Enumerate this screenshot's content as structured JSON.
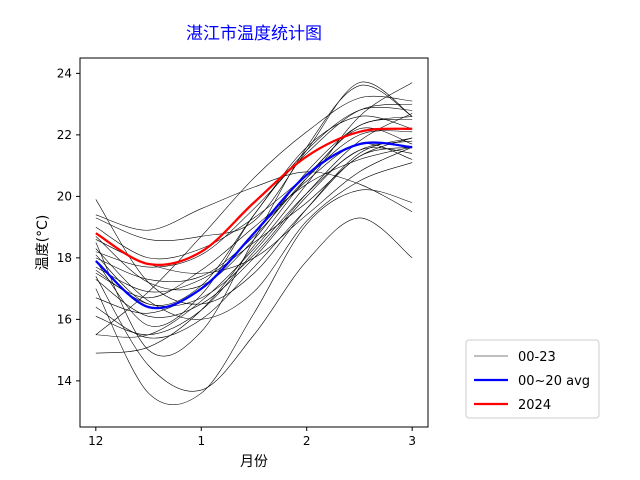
{
  "chart_data": {
    "type": "line",
    "title": "湛江市温度统计图",
    "title_color": "#0000ff",
    "xlabel": "月份",
    "ylabel": "温度(°C)",
    "xlim": [
      -0.15,
      3.15
    ],
    "ylim": [
      12.5,
      24.5
    ],
    "x_ticks": [
      0,
      1,
      2,
      3
    ],
    "x_tick_labels": [
      "12",
      "1",
      "2",
      "3"
    ],
    "y_ticks": [
      14,
      16,
      18,
      20,
      22,
      24
    ],
    "y_tick_labels": [
      "14",
      "16",
      "18",
      "20",
      "22",
      "24"
    ],
    "grid": false,
    "legend_position": "outside-lower-right",
    "legend": [
      {
        "label": "00-23",
        "color": "#000000"
      },
      {
        "label": "00~20 avg",
        "color": "#0000ff"
      },
      {
        "label": "2024",
        "color": "#ff0000"
      }
    ],
    "x": [
      0,
      0.5,
      1,
      1.5,
      2,
      2.5,
      3
    ],
    "background_series": [
      [
        19.9,
        17.2,
        16.5,
        17.5,
        19.6,
        21.4,
        21.9
      ],
      [
        18.5,
        15.0,
        15.6,
        18.6,
        21.6,
        23.6,
        22.6
      ],
      [
        17.0,
        13.6,
        13.6,
        16.2,
        19.1,
        20.2,
        19.8
      ],
      [
        15.5,
        16.9,
        18.7,
        20.6,
        22.1,
        23.2,
        23.1
      ],
      [
        19.3,
        18.6,
        18.7,
        19.2,
        21.5,
        23.7,
        22.6
      ],
      [
        19.0,
        18.0,
        18.3,
        19.3,
        20.7,
        22.2,
        21.7
      ],
      [
        18.1,
        16.5,
        17.1,
        19.4,
        21.6,
        22.6,
        22.2
      ],
      [
        17.5,
        16.7,
        17.6,
        19.0,
        20.4,
        21.2,
        21.6
      ],
      [
        18.2,
        17.7,
        18.1,
        19.6,
        21.4,
        22.8,
        23.0
      ],
      [
        16.7,
        16.2,
        17.0,
        18.8,
        20.5,
        21.7,
        21.2
      ],
      [
        17.9,
        15.8,
        16.8,
        19.4,
        21.5,
        22.8,
        22.8
      ],
      [
        17.4,
        14.5,
        13.7,
        15.5,
        17.9,
        19.3,
        18.0
      ],
      [
        15.5,
        15.5,
        16.6,
        18.3,
        20.4,
        22.6,
        23.7
      ],
      [
        18.3,
        16.6,
        16.0,
        16.9,
        19.2,
        20.5,
        21.1
      ],
      [
        14.9,
        15.1,
        16.3,
        18.4,
        20.6,
        22.3,
        22.5
      ],
      [
        16.1,
        15.5,
        16.3,
        18.2,
        20.1,
        21.5,
        21.8
      ],
      [
        19.4,
        18.9,
        19.6,
        20.3,
        20.8,
        20.4,
        19.5
      ],
      [
        18.7,
        17.2,
        17.1,
        18.6,
        20.8,
        22.3,
        22.6
      ],
      [
        17.7,
        16.9,
        17.3,
        18.5,
        19.8,
        21.3,
        21.9
      ],
      [
        18.0,
        17.3,
        17.4,
        18.7,
        20.6,
        22.0,
        22.1
      ],
      [
        16.4,
        15.4,
        16.0,
        17.7,
        19.6,
        21.3,
        21.6
      ],
      [
        17.6,
        16.5,
        16.7,
        18.1,
        20.1,
        21.8,
        22.7
      ],
      [
        18.6,
        17.8,
        17.5,
        18.0,
        19.4,
        20.8,
        21.6
      ],
      [
        17.3,
        16.1,
        16.5,
        18.0,
        20.0,
        21.5,
        21.4
      ]
    ],
    "series": [
      {
        "name": "00~20 avg",
        "color": "#0000ff",
        "values": [
          17.9,
          16.4,
          17.0,
          18.8,
          20.7,
          21.7,
          21.6
        ]
      },
      {
        "name": "2024",
        "color": "#ff0000",
        "values": [
          18.8,
          17.8,
          18.2,
          19.8,
          21.3,
          22.1,
          22.2
        ]
      }
    ]
  }
}
